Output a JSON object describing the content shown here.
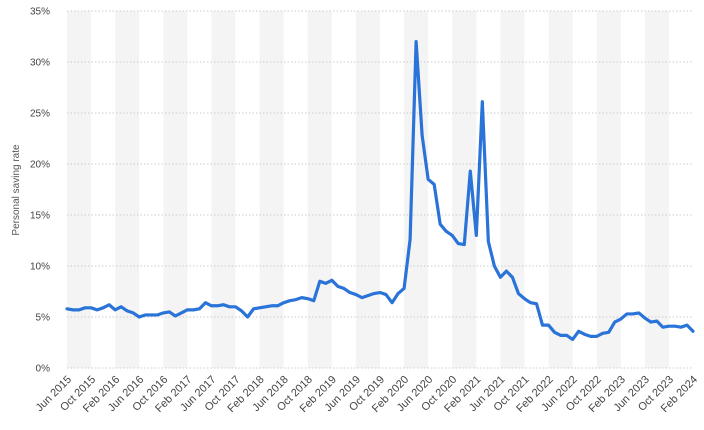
{
  "chart_data": {
    "type": "line",
    "ylabel": "Personal saving rate",
    "xlabel": "",
    "ylim": [
      0,
      35
    ],
    "yticks": [
      "0%",
      "5%",
      "10%",
      "15%",
      "20%",
      "25%",
      "30%",
      "35%"
    ],
    "ytick_values": [
      0,
      5,
      10,
      15,
      20,
      25,
      30,
      35
    ],
    "x_tick_labels": [
      "Jun 2015",
      "Oct 2015",
      "Feb 2016",
      "Jun 2016",
      "Oct 2016",
      "Feb 2017",
      "Jun 2017",
      "Oct 2017",
      "Feb 2018",
      "Jun 2018",
      "Oct 2018",
      "Feb 2019",
      "Jun 2019",
      "Oct 2019",
      "Feb 2020",
      "Jun 2020",
      "Oct 2020",
      "Feb 2021",
      "Jun 2021",
      "Oct 2021",
      "Feb 2022",
      "Jun 2022",
      "Oct 2022",
      "Feb 2023",
      "Jun 2023",
      "Oct 2023",
      "Feb 2024"
    ],
    "x_tick_month_index": [
      0,
      4,
      8,
      12,
      16,
      20,
      24,
      28,
      32,
      36,
      40,
      44,
      48,
      52,
      56,
      60,
      64,
      68,
      72,
      76,
      80,
      84,
      88,
      92,
      96,
      100,
      104
    ],
    "grid": true,
    "line_color": "#2a73d9",
    "series": [
      {
        "x_start": "Jun 2015",
        "values": [
          5.8,
          5.7,
          5.7,
          5.9,
          5.9,
          5.7,
          5.9,
          6.2,
          5.7,
          6.0,
          5.6,
          5.4,
          5.0,
          5.2,
          5.2,
          5.2,
          5.4,
          5.5,
          5.1,
          5.4,
          5.7,
          5.7,
          5.8,
          6.4,
          6.1,
          6.1,
          6.2,
          6.0,
          6.0,
          5.6,
          5.0,
          5.8,
          5.9,
          6.0,
          6.1,
          6.1,
          6.4,
          6.6,
          6.7,
          6.9,
          6.8,
          6.6,
          8.5,
          8.3,
          8.6,
          8.0,
          7.8,
          7.4,
          7.2,
          6.9,
          7.1,
          7.3,
          7.4,
          7.2,
          6.4,
          7.3,
          7.8,
          12.6,
          32.0,
          22.8,
          18.5,
          18.0,
          14.1,
          13.4,
          13.0,
          12.2,
          12.1,
          19.3,
          13.0,
          26.1,
          12.4,
          10.0,
          8.9,
          9.5,
          8.9,
          7.3,
          6.8,
          6.4,
          6.3,
          4.2,
          4.2,
          3.5,
          3.2,
          3.2,
          2.8,
          3.6,
          3.3,
          3.1,
          3.1,
          3.4,
          3.5,
          4.5,
          4.8,
          5.3,
          5.3,
          5.4,
          4.9,
          4.5,
          4.6,
          4.0,
          4.1,
          4.1,
          4.0,
          4.2,
          3.6
        ]
      }
    ]
  }
}
